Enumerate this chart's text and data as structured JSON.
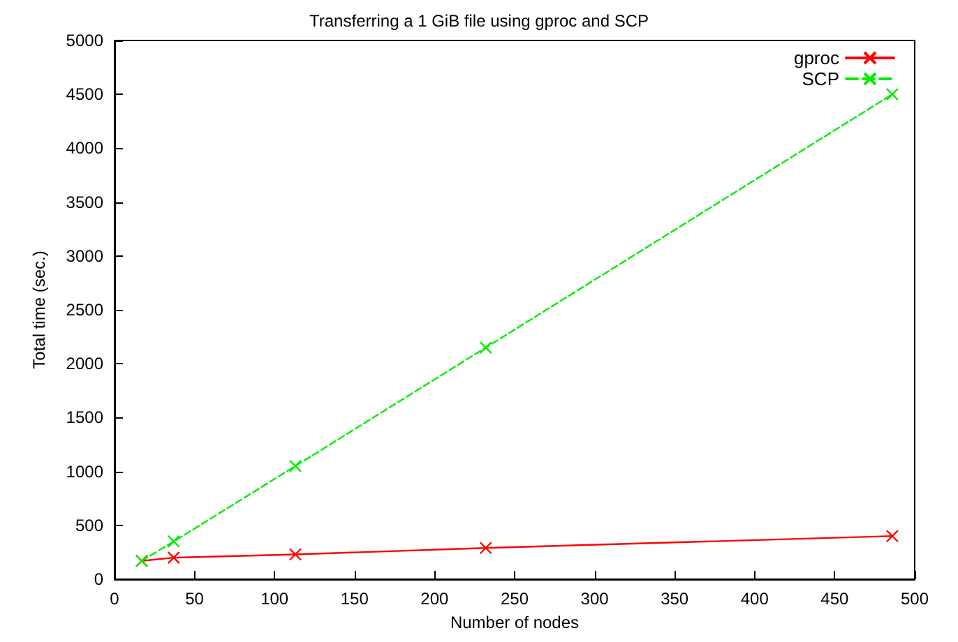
{
  "chart_data": {
    "type": "line",
    "title": "Transferring a 1 GiB file using gproc and SCP",
    "xlabel": "Number of nodes",
    "ylabel": "Total time (sec.)",
    "xlim": [
      0,
      500
    ],
    "xticks": [
      0,
      50,
      100,
      150,
      200,
      250,
      300,
      350,
      400,
      450,
      500
    ],
    "ylim": [
      0,
      5000
    ],
    "yticks": [
      0,
      500,
      1000,
      1500,
      2000,
      2500,
      3000,
      3500,
      4000,
      4500,
      5000
    ],
    "grid": false,
    "legend": "top right",
    "series": [
      {
        "name": "gproc",
        "color": "#ff0000",
        "x": [
          17,
          37,
          113,
          232,
          486
        ],
        "values": [
          170,
          200,
          230,
          290,
          400
        ],
        "marker": "cross",
        "line_style": "solid"
      },
      {
        "name": "SCP",
        "color": "#00ee00",
        "x": [
          17,
          37,
          113,
          232,
          486
        ],
        "values": [
          170,
          350,
          1050,
          2150,
          4500
        ],
        "marker": "cross",
        "line_style": "dashed"
      }
    ]
  }
}
